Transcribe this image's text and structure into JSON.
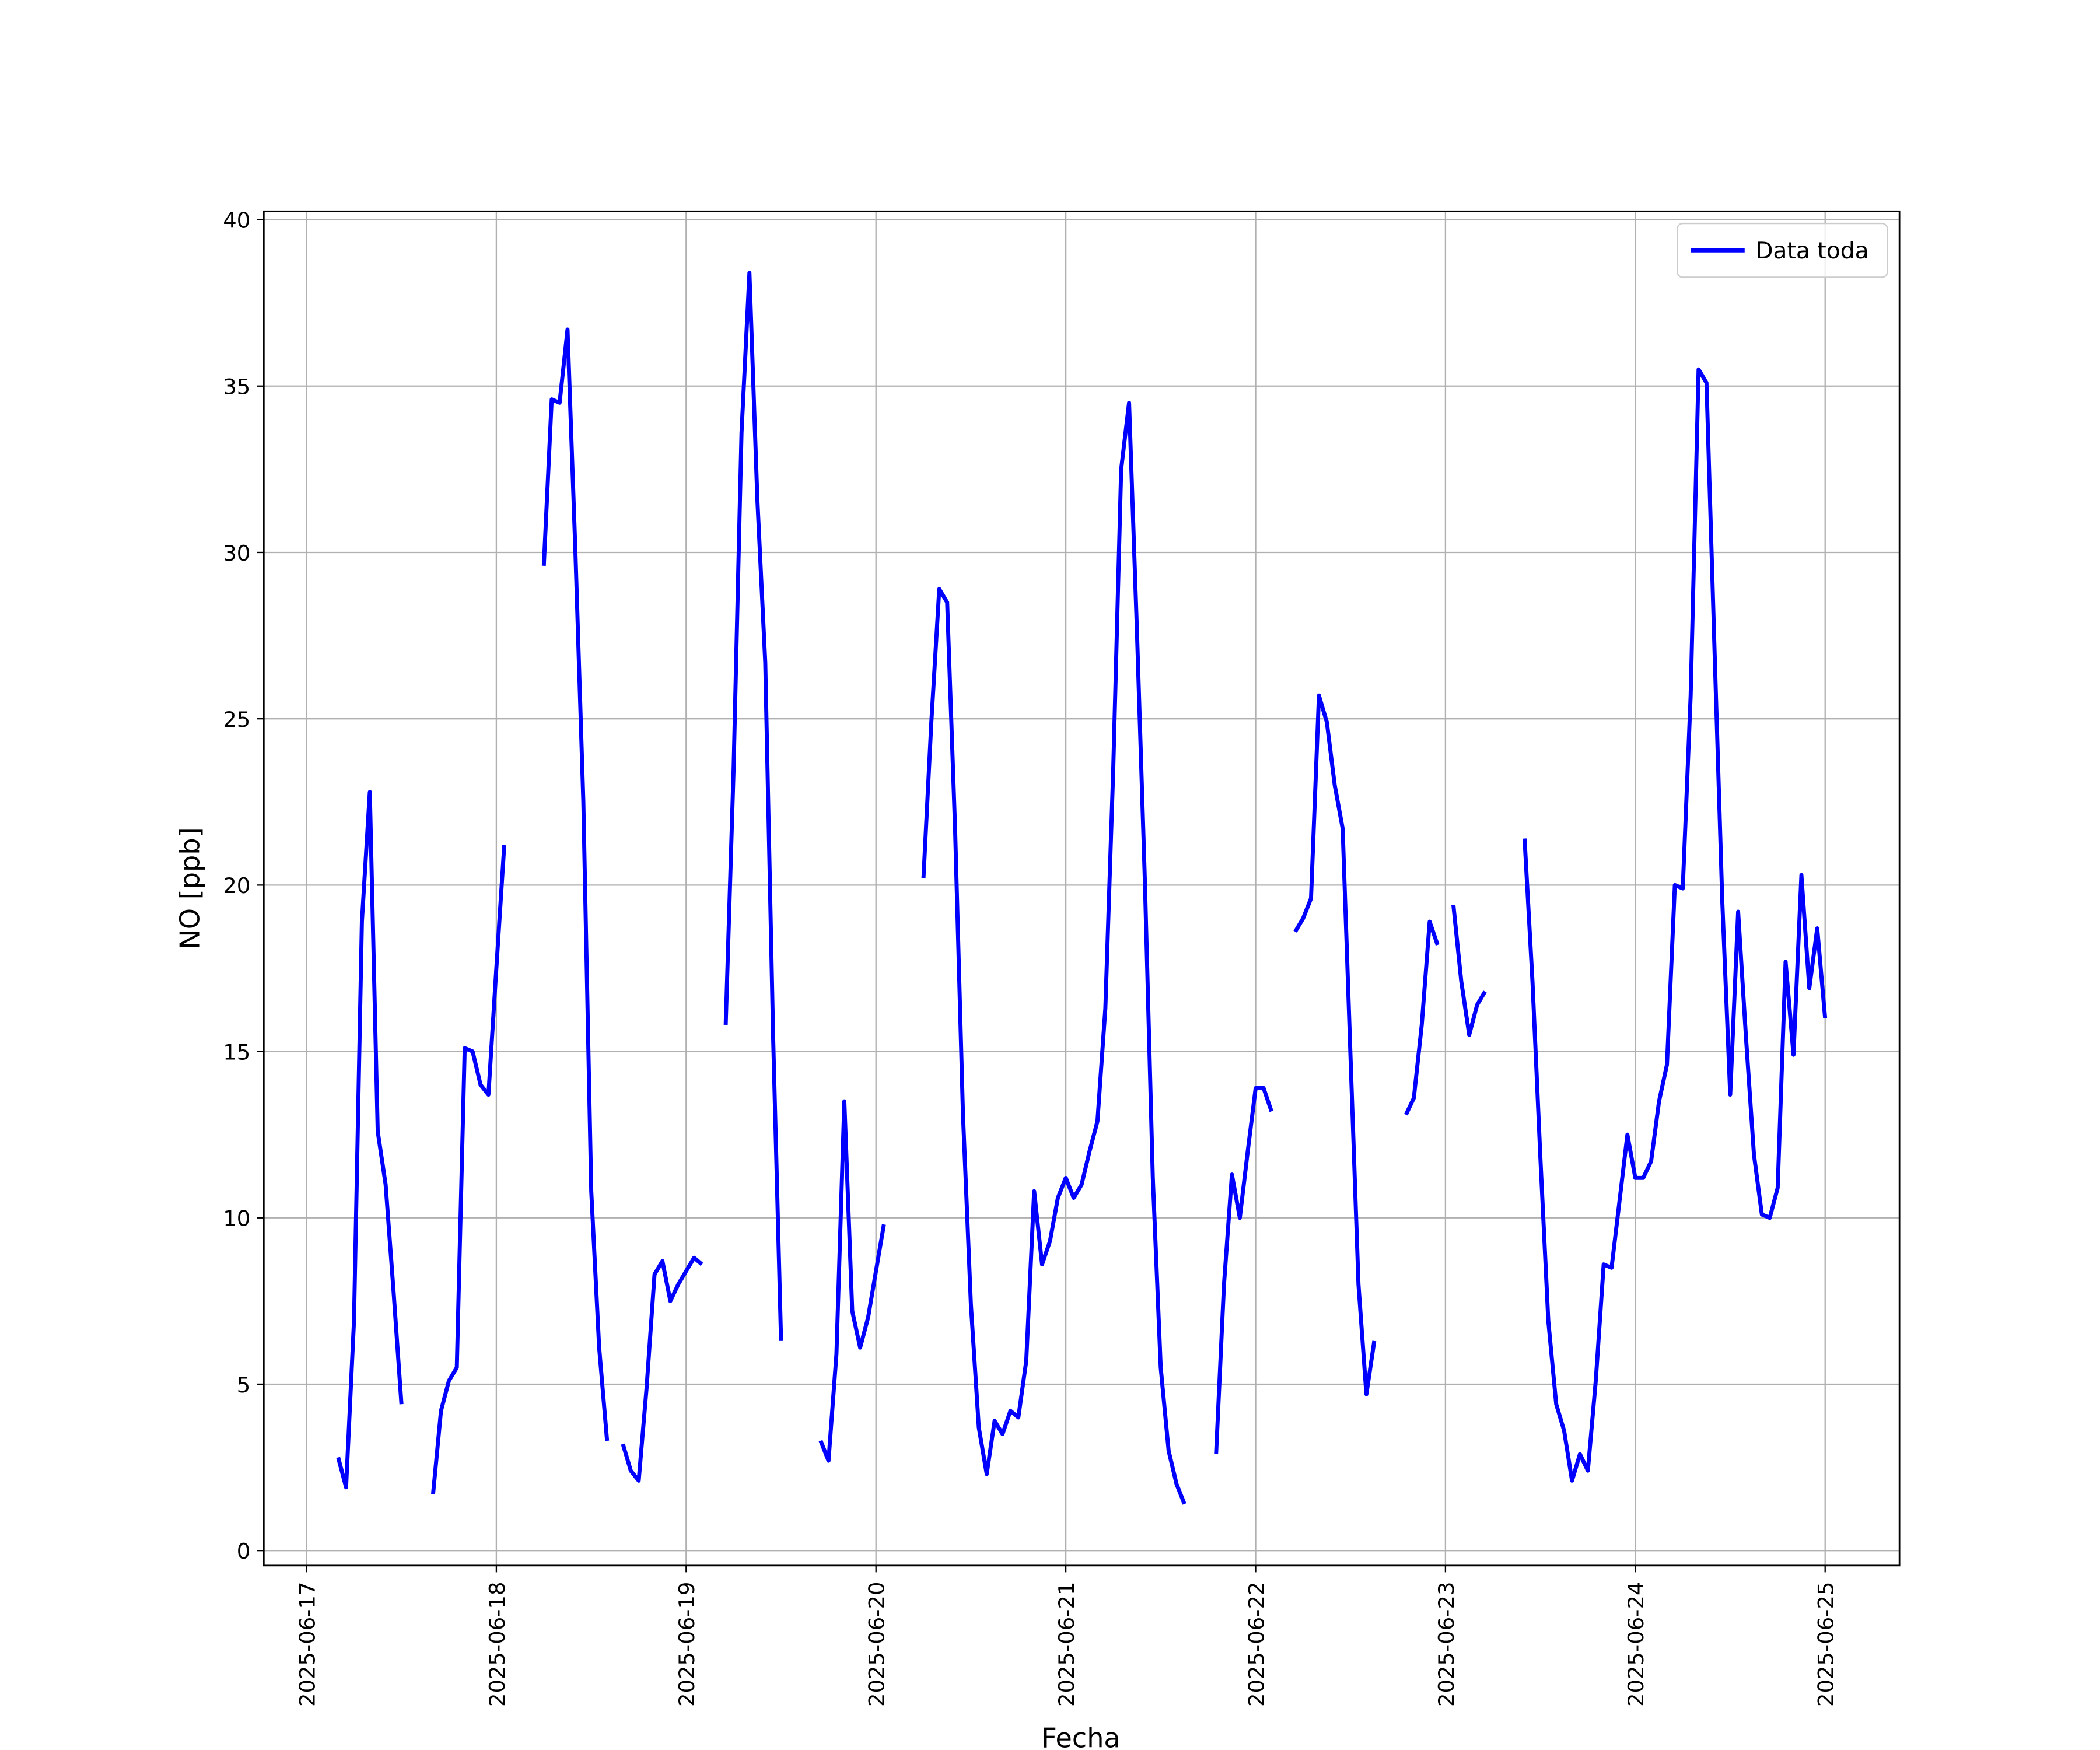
{
  "chart_data": {
    "type": "line",
    "xlabel": "Fecha",
    "ylabel": "NO [ppb]",
    "x": [
      "2025-06-17 04:00",
      "2025-06-17 05:00",
      "2025-06-17 06:00",
      "2025-06-17 07:00",
      "2025-06-17 08:00",
      "2025-06-17 09:00",
      "2025-06-17 10:00",
      "2025-06-17 11:00",
      "2025-06-17 12:00",
      "2025-06-17 13:00",
      "2025-06-17 14:00",
      "2025-06-17 15:00",
      "2025-06-17 16:00",
      "2025-06-17 17:00",
      "2025-06-17 18:00",
      "2025-06-17 19:00",
      "2025-06-17 20:00",
      "2025-06-17 21:00",
      "2025-06-17 22:00",
      "2025-06-17 23:00",
      "2025-06-18 00:00",
      "2025-06-18 01:00",
      "2025-06-18 02:00",
      "2025-06-18 03:00",
      "2025-06-18 04:00",
      "2025-06-18 05:00",
      "2025-06-18 06:00",
      "2025-06-18 07:00",
      "2025-06-18 08:00",
      "2025-06-18 09:00",
      "2025-06-18 10:00",
      "2025-06-18 11:00",
      "2025-06-18 12:00",
      "2025-06-18 13:00",
      "2025-06-18 14:00",
      "2025-06-18 15:00",
      "2025-06-18 16:00",
      "2025-06-18 17:00",
      "2025-06-18 18:00",
      "2025-06-18 19:00",
      "2025-06-18 20:00",
      "2025-06-18 21:00",
      "2025-06-18 22:00",
      "2025-06-18 23:00",
      "2025-06-19 00:00",
      "2025-06-19 01:00",
      "2025-06-19 02:00",
      "2025-06-19 03:00",
      "2025-06-19 04:00",
      "2025-06-19 05:00",
      "2025-06-19 06:00",
      "2025-06-19 07:00",
      "2025-06-19 08:00",
      "2025-06-19 09:00",
      "2025-06-19 10:00",
      "2025-06-19 11:00",
      "2025-06-19 12:00",
      "2025-06-19 13:00",
      "2025-06-19 14:00",
      "2025-06-19 15:00",
      "2025-06-19 16:00",
      "2025-06-19 17:00",
      "2025-06-19 18:00",
      "2025-06-19 19:00",
      "2025-06-19 20:00",
      "2025-06-19 21:00",
      "2025-06-19 22:00",
      "2025-06-19 23:00",
      "2025-06-20 00:00",
      "2025-06-20 01:00",
      "2025-06-20 02:00",
      "2025-06-20 03:00",
      "2025-06-20 04:00",
      "2025-06-20 05:00",
      "2025-06-20 06:00",
      "2025-06-20 07:00",
      "2025-06-20 08:00",
      "2025-06-20 09:00",
      "2025-06-20 10:00",
      "2025-06-20 11:00",
      "2025-06-20 12:00",
      "2025-06-20 13:00",
      "2025-06-20 14:00",
      "2025-06-20 15:00",
      "2025-06-20 16:00",
      "2025-06-20 17:00",
      "2025-06-20 18:00",
      "2025-06-20 19:00",
      "2025-06-20 20:00",
      "2025-06-20 21:00",
      "2025-06-20 22:00",
      "2025-06-20 23:00",
      "2025-06-21 00:00",
      "2025-06-21 01:00",
      "2025-06-21 02:00",
      "2025-06-21 03:00",
      "2025-06-21 04:00",
      "2025-06-21 05:00",
      "2025-06-21 06:00",
      "2025-06-21 07:00",
      "2025-06-21 08:00",
      "2025-06-21 09:00",
      "2025-06-21 10:00",
      "2025-06-21 11:00",
      "2025-06-21 12:00",
      "2025-06-21 13:00",
      "2025-06-21 14:00",
      "2025-06-21 15:00",
      "2025-06-21 16:00",
      "2025-06-21 17:00",
      "2025-06-21 18:00",
      "2025-06-21 19:00",
      "2025-06-21 20:00",
      "2025-06-21 21:00",
      "2025-06-21 22:00",
      "2025-06-21 23:00",
      "2025-06-22 00:00",
      "2025-06-22 01:00",
      "2025-06-22 02:00",
      "2025-06-22 03:00",
      "2025-06-22 04:00",
      "2025-06-22 05:00",
      "2025-06-22 06:00",
      "2025-06-22 07:00",
      "2025-06-22 08:00",
      "2025-06-22 09:00",
      "2025-06-22 10:00",
      "2025-06-22 11:00",
      "2025-06-22 12:00",
      "2025-06-22 13:00",
      "2025-06-22 14:00",
      "2025-06-22 15:00",
      "2025-06-22 16:00",
      "2025-06-22 17:00",
      "2025-06-22 18:00",
      "2025-06-22 19:00",
      "2025-06-22 20:00",
      "2025-06-22 21:00",
      "2025-06-22 22:00",
      "2025-06-22 23:00",
      "2025-06-23 00:00",
      "2025-06-23 01:00",
      "2025-06-23 02:00",
      "2025-06-23 03:00",
      "2025-06-23 04:00",
      "2025-06-23 05:00",
      "2025-06-23 06:00",
      "2025-06-23 07:00",
      "2025-06-23 08:00",
      "2025-06-23 09:00",
      "2025-06-23 10:00",
      "2025-06-23 11:00",
      "2025-06-23 12:00",
      "2025-06-23 13:00",
      "2025-06-23 14:00",
      "2025-06-23 15:00",
      "2025-06-23 16:00",
      "2025-06-23 17:00",
      "2025-06-23 18:00",
      "2025-06-23 19:00",
      "2025-06-23 20:00",
      "2025-06-23 21:00",
      "2025-06-23 22:00",
      "2025-06-23 23:00",
      "2025-06-24 00:00",
      "2025-06-24 01:00",
      "2025-06-24 02:00",
      "2025-06-24 03:00",
      "2025-06-24 04:00",
      "2025-06-24 05:00",
      "2025-06-24 06:00",
      "2025-06-24 07:00",
      "2025-06-24 08:00",
      "2025-06-24 09:00",
      "2025-06-24 10:00",
      "2025-06-24 11:00",
      "2025-06-24 12:00",
      "2025-06-24 13:00",
      "2025-06-24 14:00",
      "2025-06-24 15:00",
      "2025-06-24 16:00",
      "2025-06-24 17:00",
      "2025-06-24 18:00",
      "2025-06-24 19:00",
      "2025-06-24 20:00",
      "2025-06-24 21:00",
      "2025-06-24 22:00",
      "2025-06-24 23:00",
      "2025-06-25 00:00"
    ],
    "series": [
      {
        "name": "Data toda",
        "color": "#0000ff",
        "values": [
          2.8,
          1.9,
          6.9,
          18.9,
          22.8,
          12.6,
          11.0,
          7.8,
          4.4,
          null,
          null,
          null,
          1.7,
          4.2,
          5.1,
          5.5,
          15.1,
          15.0,
          14.0,
          13.7,
          17.5,
          21.2,
          null,
          null,
          null,
          null,
          29.6,
          34.6,
          34.5,
          36.7,
          30.0,
          22.5,
          10.8,
          6.1,
          3.3,
          null,
          3.2,
          2.4,
          2.1,
          4.9,
          8.3,
          8.7,
          7.5,
          8.0,
          8.4,
          8.8,
          8.6,
          null,
          null,
          15.8,
          23.5,
          33.6,
          38.4,
          31.6,
          26.7,
          15.4,
          6.3,
          null,
          null,
          null,
          null,
          3.3,
          2.7,
          5.9,
          13.5,
          7.2,
          6.1,
          7.0,
          8.4,
          9.8,
          null,
          null,
          null,
          null,
          20.2,
          24.9,
          28.9,
          28.5,
          21.7,
          13.1,
          7.4,
          3.7,
          2.3,
          3.9,
          3.5,
          4.2,
          4.0,
          5.7,
          10.8,
          8.6,
          9.3,
          10.6,
          11.2,
          10.6,
          11.0,
          12.0,
          12.9,
          16.3,
          23.5,
          32.5,
          34.5,
          27.6,
          20.1,
          11.2,
          5.5,
          3.0,
          2.0,
          1.4,
          null,
          null,
          null,
          2.9,
          8.0,
          11.3,
          10.0,
          12.0,
          13.9,
          13.9,
          13.2,
          null,
          null,
          18.6,
          19.0,
          19.6,
          25.7,
          24.9,
          23.0,
          21.7,
          14.8,
          8.0,
          4.7,
          6.3,
          null,
          null,
          null,
          13.1,
          13.6,
          15.8,
          18.9,
          18.2,
          null,
          19.4,
          17.1,
          15.5,
          16.4,
          16.8,
          null,
          null,
          null,
          null,
          21.4,
          17.1,
          11.8,
          6.9,
          4.4,
          3.6,
          2.1,
          2.9,
          2.4,
          5.1,
          8.6,
          8.5,
          10.5,
          12.5,
          11.2,
          11.2,
          11.7,
          13.5,
          14.6,
          20.0,
          19.9,
          25.7,
          35.5,
          35.1,
          27.2,
          19.5,
          13.7,
          19.2,
          15.4,
          11.9,
          10.1,
          10.0,
          10.9,
          17.7,
          14.9,
          20.3,
          16.9,
          18.7,
          16.0
        ]
      }
    ],
    "xlim": [
      "2025-06-16 18:36",
      "2025-06-25 09:24"
    ],
    "xticks": [
      "2025-06-17",
      "2025-06-18",
      "2025-06-19",
      "2025-06-20",
      "2025-06-21",
      "2025-06-22",
      "2025-06-23",
      "2025-06-24",
      "2025-06-25"
    ],
    "ylim": [
      -0.45,
      40.25
    ],
    "yticks": [
      0,
      5,
      10,
      15,
      20,
      25,
      30,
      35,
      40
    ],
    "grid": true,
    "legend": "upper right"
  }
}
